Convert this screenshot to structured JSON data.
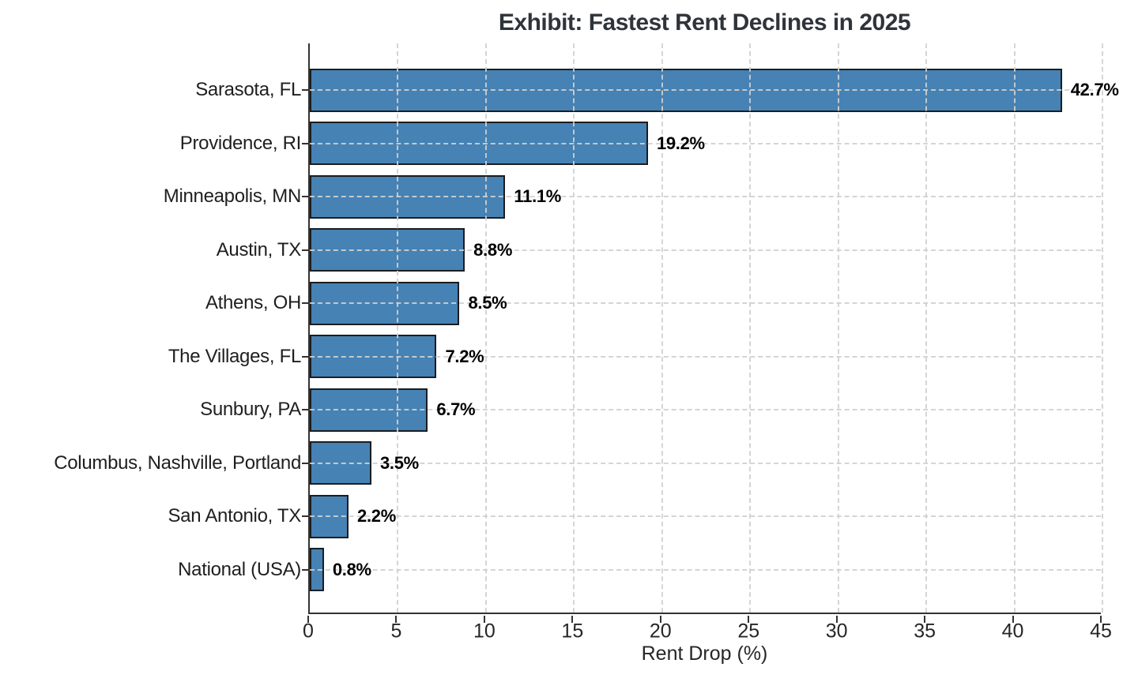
{
  "title": "Exhibit: Fastest Rent Declines in 2025",
  "chart_data": {
    "type": "bar",
    "orientation": "horizontal",
    "title": "Exhibit: Fastest Rent Declines in 2025",
    "xlabel": "Rent Drop (%)",
    "ylabel": "",
    "categories": [
      "Sarasota, FL",
      "Providence, RI",
      "Minneapolis, MN",
      "Austin, TX",
      "Athens, OH",
      "The Villages, FL",
      "Sunbury, PA",
      "Columbus, Nashville, Portland",
      "San Antonio, TX",
      "National (USA)"
    ],
    "values": [
      42.7,
      19.2,
      11.1,
      8.8,
      8.5,
      7.2,
      6.7,
      3.5,
      2.2,
      0.8
    ],
    "value_labels": [
      "42.7%",
      "19.2%",
      "11.1%",
      "8.8%",
      "8.5%",
      "7.2%",
      "6.7%",
      "3.5%",
      "2.2%",
      "0.8%"
    ],
    "xlim": [
      0,
      45
    ],
    "xticks": [
      0,
      5,
      10,
      15,
      20,
      25,
      30,
      35,
      40,
      45
    ],
    "grid": true,
    "grid_style": "dashed, both axes, drawn above bars",
    "legend": "none",
    "colors": {
      "bar_fill": "#4682B4",
      "bar_edge": "#1a1d21",
      "grid": "#d0d0d0",
      "axis": "#333333",
      "title_text": "#2e343a",
      "label_text": "#1f1f1f",
      "background": "#ffffff"
    }
  }
}
